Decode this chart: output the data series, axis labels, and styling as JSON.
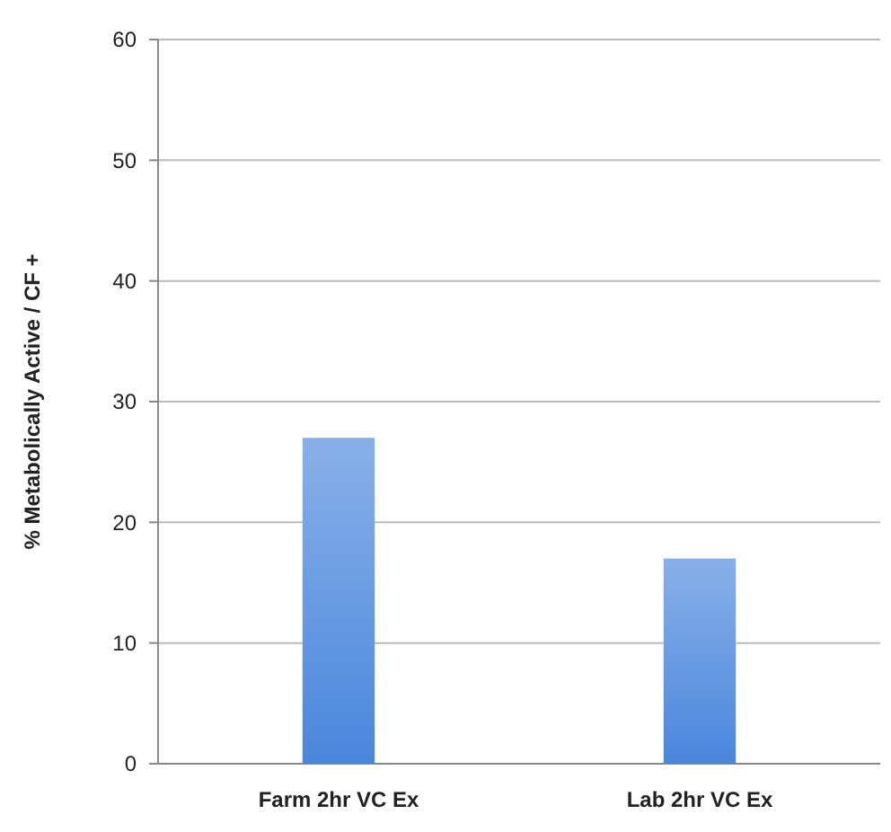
{
  "chart_data": {
    "type": "bar",
    "ylabel": "% Metabolically Active / CF +",
    "categories": [
      "Farm 2hr VC Ex",
      "Lab 2hr VC Ex"
    ],
    "values": [
      27,
      17
    ],
    "color": "#4a86dc",
    "ylim": [
      0,
      60
    ],
    "yticks": [
      0,
      10,
      20,
      30,
      40,
      50,
      60
    ],
    "grid": "y"
  }
}
